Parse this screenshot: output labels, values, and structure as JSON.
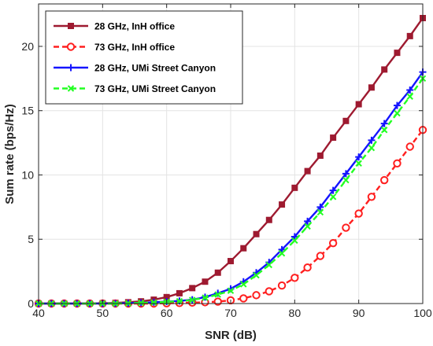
{
  "chart_data": {
    "type": "line",
    "xlabel": "SNR (dB)",
    "ylabel": "Sum rate (bps/Hz)",
    "xlim": [
      40,
      100
    ],
    "ylim": [
      0,
      23.3
    ],
    "xticks": [
      40,
      50,
      60,
      70,
      80,
      90,
      100
    ],
    "yticks": [
      0,
      5,
      10,
      15,
      20
    ],
    "grid": true,
    "legend_position": "top-left",
    "x": [
      40,
      42,
      44,
      46,
      48,
      50,
      52,
      54,
      56,
      58,
      60,
      62,
      64,
      66,
      68,
      70,
      72,
      74,
      76,
      78,
      80,
      82,
      84,
      86,
      88,
      90,
      92,
      94,
      96,
      98,
      100
    ],
    "series": [
      {
        "name": "28 GHz, InH office",
        "color": "#9e1a30",
        "dash": "solid",
        "marker": "square",
        "values": [
          0,
          0,
          0,
          0,
          0,
          0.02,
          0.05,
          0.1,
          0.17,
          0.3,
          0.5,
          0.8,
          1.2,
          1.7,
          2.4,
          3.3,
          4.3,
          5.4,
          6.5,
          7.7,
          9.0,
          10.3,
          11.5,
          12.9,
          14.2,
          15.5,
          16.8,
          18.2,
          19.5,
          20.8,
          22.2
        ]
      },
      {
        "name": "73 GHz, InH office",
        "color": "#ff1f1f",
        "dash": "dashed",
        "marker": "circle",
        "values": [
          0,
          0,
          0,
          0,
          0,
          0,
          0,
          0,
          0,
          0,
          0.02,
          0.04,
          0.07,
          0.1,
          0.15,
          0.25,
          0.4,
          0.65,
          0.95,
          1.4,
          2.0,
          2.8,
          3.7,
          4.7,
          5.9,
          7.0,
          8.3,
          9.6,
          10.9,
          12.2,
          13.5
        ]
      },
      {
        "name": "28 GHz, UMi Street Canyon",
        "color": "#1414ff",
        "dash": "solid",
        "marker": "plus",
        "values": [
          0,
          0,
          0,
          0,
          0,
          0,
          0.01,
          0.03,
          0.06,
          0.1,
          0.15,
          0.2,
          0.3,
          0.5,
          0.8,
          1.15,
          1.7,
          2.4,
          3.2,
          4.2,
          5.2,
          6.4,
          7.5,
          8.8,
          10.1,
          11.4,
          12.7,
          14.0,
          15.4,
          16.6,
          18.0
        ]
      },
      {
        "name": "73 GHz, UMi Street Canyon",
        "color": "#22ff22",
        "dash": "dashed",
        "marker": "x",
        "values": [
          0,
          0,
          0,
          0,
          0,
          0,
          0,
          0.02,
          0.05,
          0.08,
          0.13,
          0.18,
          0.28,
          0.45,
          0.7,
          1.0,
          1.5,
          2.2,
          3.0,
          3.9,
          4.9,
          6.0,
          7.1,
          8.3,
          9.6,
          10.9,
          12.1,
          13.5,
          14.8,
          16.1,
          17.5
        ]
      }
    ]
  }
}
